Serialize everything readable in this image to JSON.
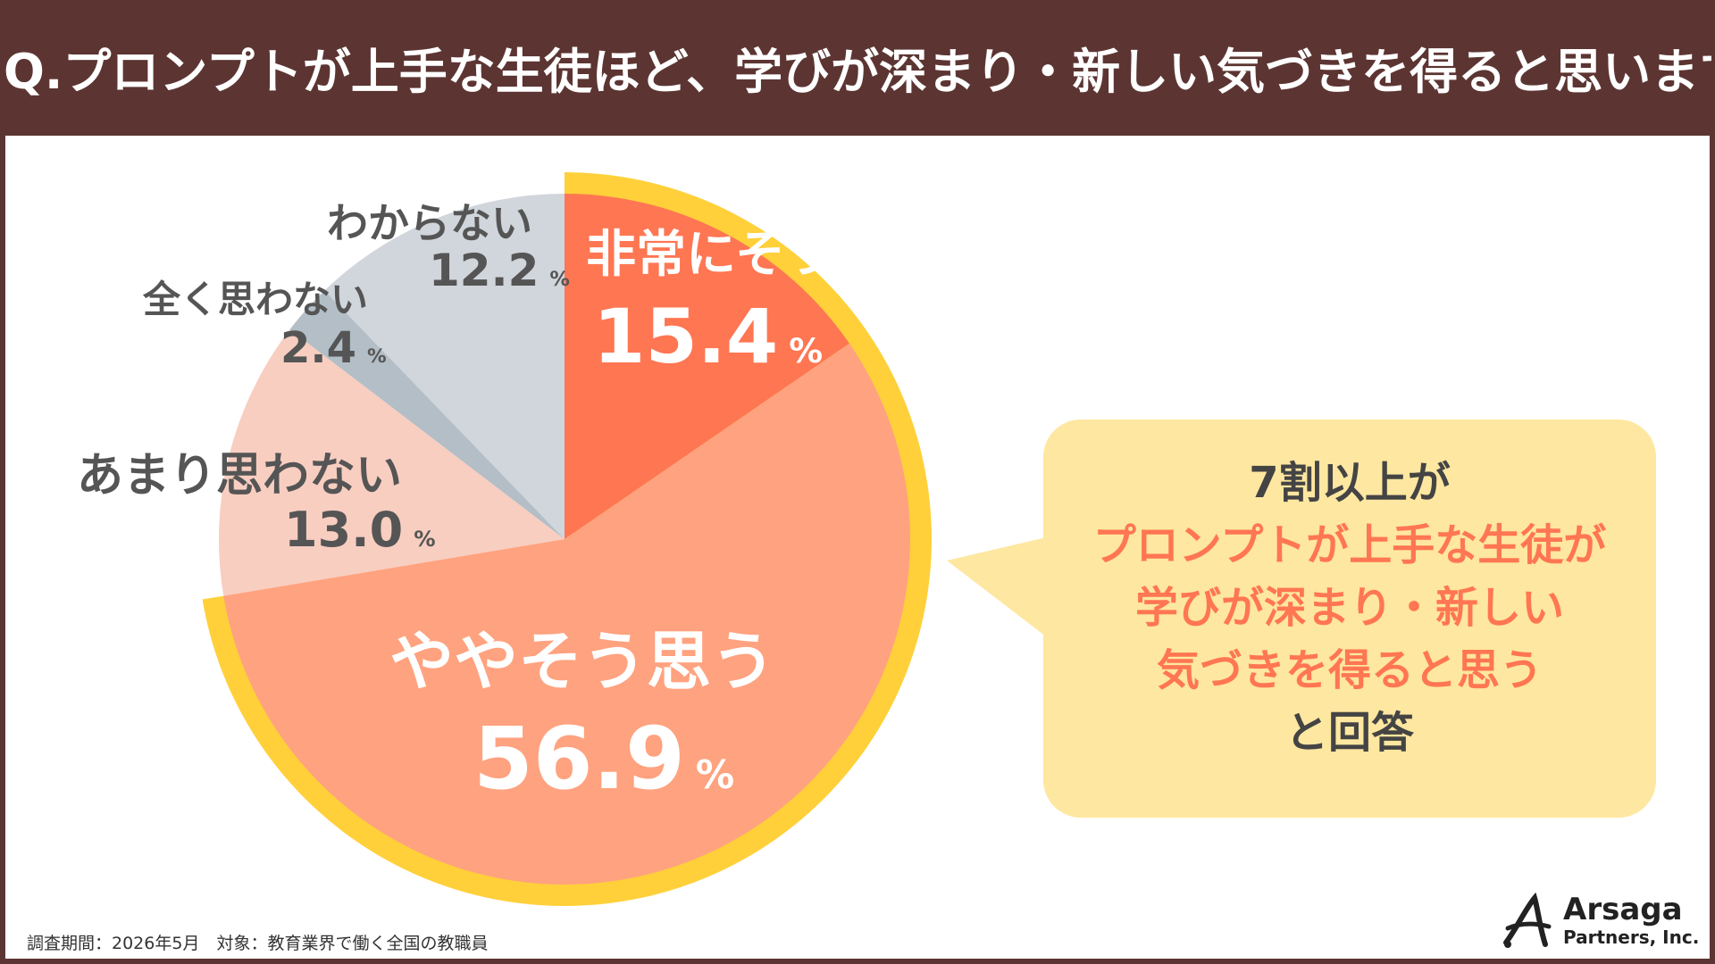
{
  "title": "Q.プロンプトが上手な生徒ほど、学びが深まり・新しい気づきを得ると思いますか？",
  "chart_data": {
    "type": "pie",
    "title": "Q.プロンプトが上手な生徒ほど、学びが深まり・新しい気づきを得ると思いますか？",
    "unit": "%",
    "slices": [
      {
        "label": "非常にそう思う",
        "value": 15.4,
        "display": "15.4",
        "color": "#FF7652",
        "text_color": "#ffffff",
        "highlight": true
      },
      {
        "label": "ややそう思う",
        "value": 56.9,
        "display": "56.9",
        "color": "#FFA27F",
        "text_color": "#ffffff",
        "highlight": true
      },
      {
        "label": "あまり思わない",
        "value": 13.0,
        "display": "13.0",
        "color": "#F8CEC1",
        "text_color": "#555555",
        "highlight": false
      },
      {
        "label": "全く思わない",
        "value": 2.4,
        "display": "2.4",
        "color": "#B3BEC6",
        "text_color": "#555555",
        "highlight": false
      },
      {
        "label": "わからない",
        "value": 12.2,
        "display": "12.2",
        "color": "#D0D6DB",
        "text_color": "#555555",
        "highlight": false
      }
    ],
    "highlight_ring_color": "#FFD03A"
  },
  "callout": {
    "line1": "7割以上が",
    "line2": "プロンプトが上手な生徒が",
    "line3": "学びが深まり・新しい",
    "line4": "気づきを得ると思う",
    "line5": "と回答",
    "emphasis_color": "#FF7652",
    "text_color": "#444444"
  },
  "footer": {
    "note": "調査期間：2026年5月　対象：教育業界で働く全国の教職員"
  },
  "logo": {
    "name": "Arsaga",
    "sub": "Partners, Inc."
  }
}
